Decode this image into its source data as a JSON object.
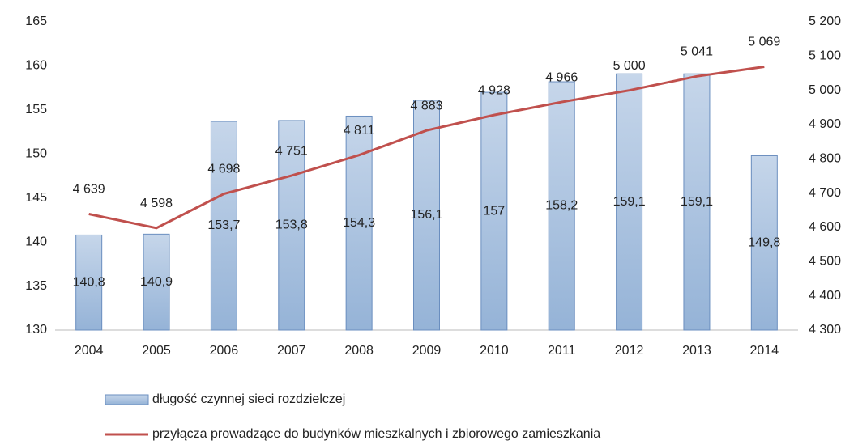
{
  "chart_data": {
    "type": "bar",
    "categories": [
      "2004",
      "2005",
      "2006",
      "2007",
      "2008",
      "2009",
      "2010",
      "2011",
      "2012",
      "2013",
      "2014"
    ],
    "series": [
      {
        "name": "długość czynnej sieci rozdzielczej",
        "type": "bar",
        "color": "#95b3d7",
        "values": [
          140.8,
          140.9,
          153.7,
          153.8,
          154.3,
          156.1,
          157,
          158.2,
          159.1,
          159.1,
          149.8
        ],
        "value_labels": [
          "140,8",
          "140,9",
          "153,7",
          "153,8",
          "154,3",
          "156,1",
          "157",
          "158,2",
          "159,1",
          "159,1",
          "149,8"
        ]
      },
      {
        "name": "przyłącza prowadzące do budynków mieszkalnych i zbiorowego zamieszkania",
        "type": "line",
        "axis": "y2",
        "color": "#c0504d",
        "values": [
          4639,
          4598,
          4698,
          4751,
          4811,
          4883,
          4928,
          4966,
          5000,
          5041,
          5069
        ],
        "value_labels": [
          "4 639",
          "4 598",
          "4 698",
          "4 751",
          "4 811",
          "4 883",
          "4 928",
          "4 966",
          "5 000",
          "5 041",
          "5 069"
        ]
      }
    ],
    "ylim": [
      130,
      165
    ],
    "yticks": [
      130,
      135,
      140,
      145,
      150,
      155,
      160,
      165
    ],
    "y2lim": [
      4300,
      5200
    ],
    "y2ticks": [
      {
        "value": 4300,
        "label": "4 300"
      },
      {
        "value": 4400,
        "label": "4 400"
      },
      {
        "value": 4500,
        "label": "4 500"
      },
      {
        "value": 4600,
        "label": "4 600"
      },
      {
        "value": 4700,
        "label": "4 700"
      },
      {
        "value": 4800,
        "label": "4 800"
      },
      {
        "value": 4900,
        "label": "4 900"
      },
      {
        "value": 5000,
        "label": "5 000"
      },
      {
        "value": 5100,
        "label": "5 100"
      },
      {
        "value": 5200,
        "label": "5 200"
      }
    ],
    "grid": false
  }
}
